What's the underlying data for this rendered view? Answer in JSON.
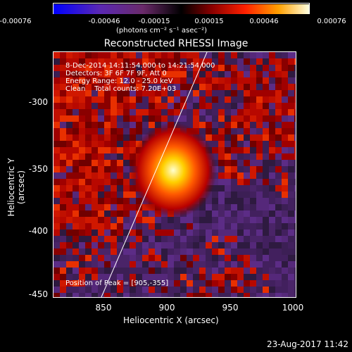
{
  "colorbar": {
    "ticks": [
      "-0.00076",
      "-0.00046",
      "-0.00015",
      "0.00015",
      "0.00046",
      "0.00076"
    ],
    "unit": "(photons cm⁻² s⁻¹ asec⁻²)"
  },
  "title": "Reconstructed RHESSI Image",
  "info": {
    "time": "8-Dec-2014 14:11:54.000 to 14:21:54.000",
    "detectors": "Detectors: 3F 6F 7F 9F, Att 0",
    "energy": "Energy Range: 12.0 - 25.0 keV",
    "clean": "Clean    Total counts: 7.20E+03",
    "peak": "Position of Peak = [905,-355]"
  },
  "axes": {
    "xlabel": "Heliocentric X (arcsec)",
    "ylabel": "Heliocentric Y (arcsec)",
    "xticks": [
      "850",
      "900",
      "950",
      "1000"
    ],
    "yticks": [
      "-300",
      "-350",
      "-400",
      "-450"
    ]
  },
  "datestamp": "23-Aug-2017 11:42"
}
